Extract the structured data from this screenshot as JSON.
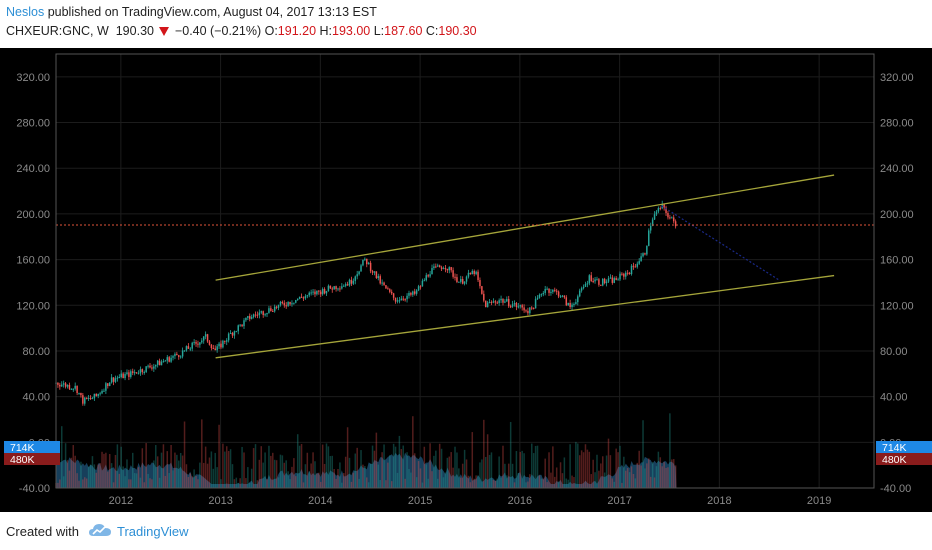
{
  "header": {
    "author": "Neslos",
    "published_text": "published on TradingView.com, August 04, 2017 13:13 EST",
    "symbol": "CHXEUR:GNC, W",
    "last": "190.30",
    "change": "−0.40 (−0.21%)",
    "o_label": "O:",
    "o_value": "191.20",
    "h_label": "H:",
    "h_value": "193.00",
    "l_label": "L:",
    "l_value": "187.60",
    "c_label": "C:",
    "c_value": "190.30"
  },
  "footer": {
    "created_with": "Created with",
    "brand": "TradingView"
  },
  "colors": {
    "background": "#000000",
    "up": "#26a69a",
    "down": "#ef5350",
    "trendline": "#a5a53a",
    "price_line": "#e0533a",
    "volume_area": "#1b4a6b",
    "badge_blue": "#1e88e5",
    "badge_red": "#8a1c1c"
  },
  "chart_data": {
    "type": "candlestick",
    "ylim": [
      -40,
      340
    ],
    "y_ticks": [
      "320.00",
      "280.00",
      "240.00",
      "200.00",
      "160.00",
      "120.00",
      "80.00",
      "40.00",
      "0.00",
      "-40.00"
    ],
    "y_tick_values": [
      320,
      280,
      240,
      200,
      160,
      120,
      80,
      40,
      0,
      -40
    ],
    "x_ticks": [
      "2012",
      "2013",
      "2014",
      "2015",
      "2016",
      "2017",
      "2018",
      "2019"
    ],
    "x_tick_values": [
      2012,
      2013,
      2014,
      2015,
      2016,
      2017,
      2018,
      2019
    ],
    "xlim": [
      2011.35,
      2019.55
    ],
    "price_anchors": [
      [
        2011.35,
        52
      ],
      [
        2011.55,
        48
      ],
      [
        2011.62,
        36
      ],
      [
        2011.75,
        40
      ],
      [
        2011.9,
        55
      ],
      [
        2012.1,
        60
      ],
      [
        2012.35,
        68
      ],
      [
        2012.6,
        78
      ],
      [
        2012.85,
        92
      ],
      [
        2012.95,
        80
      ],
      [
        2013.1,
        95
      ],
      [
        2013.3,
        110
      ],
      [
        2013.6,
        120
      ],
      [
        2013.85,
        128
      ],
      [
        2014.1,
        135
      ],
      [
        2014.3,
        140
      ],
      [
        2014.45,
        160
      ],
      [
        2014.6,
        140
      ],
      [
        2014.75,
        125
      ],
      [
        2014.95,
        130
      ],
      [
        2015.1,
        150
      ],
      [
        2015.25,
        155
      ],
      [
        2015.4,
        140
      ],
      [
        2015.55,
        150
      ],
      [
        2015.65,
        120
      ],
      [
        2015.8,
        125
      ],
      [
        2015.95,
        120
      ],
      [
        2016.1,
        115
      ],
      [
        2016.25,
        135
      ],
      [
        2016.4,
        130
      ],
      [
        2016.5,
        118
      ],
      [
        2016.6,
        130
      ],
      [
        2016.7,
        145
      ],
      [
        2016.8,
        140
      ],
      [
        2016.95,
        142
      ],
      [
        2017.1,
        150
      ],
      [
        2017.25,
        165
      ],
      [
        2017.32,
        195
      ],
      [
        2017.42,
        207
      ],
      [
        2017.5,
        197
      ],
      [
        2017.57,
        190
      ]
    ],
    "channel_upper": [
      [
        2012.95,
        142
      ],
      [
        2019.15,
        234
      ]
    ],
    "channel_lower": [
      [
        2012.95,
        74
      ],
      [
        2019.15,
        146
      ]
    ],
    "current_price": 190.3,
    "volume_badges": [
      "714K",
      "480K"
    ],
    "volume_badge_values": [
      714000,
      480000
    ]
  }
}
